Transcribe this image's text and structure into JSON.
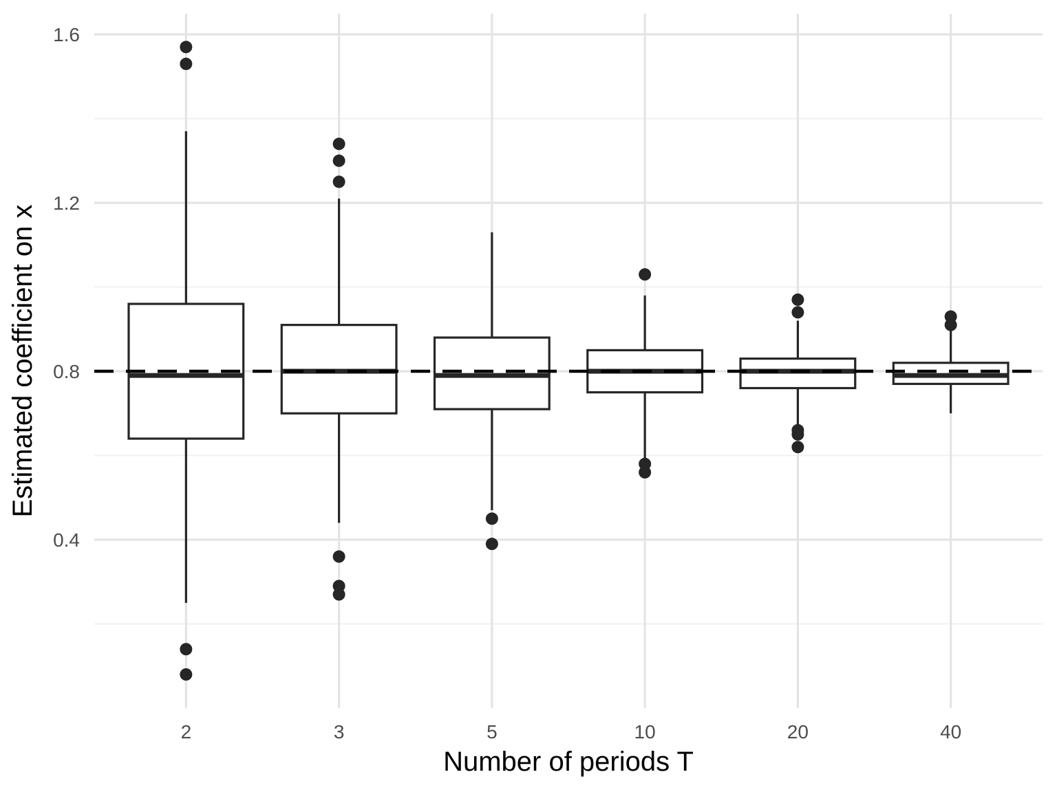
{
  "chart_data": {
    "type": "boxplot",
    "title": "",
    "xlabel": "Number of periods T",
    "ylabel": "Estimated coefficient on x",
    "categories": [
      "2",
      "3",
      "5",
      "10",
      "20",
      "40"
    ],
    "y_axis": {
      "tick_values": [
        0.4,
        0.8,
        1.2,
        1.6
      ],
      "tick_labels": [
        "0.4",
        "0.8",
        "1.2",
        "1.6"
      ],
      "minor_tick_values": [
        0.2,
        0.6,
        1.0,
        1.4
      ],
      "range": [
        0.0,
        1.649
      ]
    },
    "reference_line": {
      "y": 0.8,
      "style": "dashed",
      "color": "#000000"
    },
    "series": [
      {
        "category": "2",
        "whisker_low": 0.25,
        "q1": 0.64,
        "median": 0.79,
        "q3": 0.96,
        "whisker_high": 1.37,
        "outliers": [
          0.08,
          0.14,
          1.53,
          1.57
        ]
      },
      {
        "category": "3",
        "whisker_low": 0.44,
        "q1": 0.7,
        "median": 0.8,
        "q3": 0.91,
        "whisker_high": 1.21,
        "outliers": [
          0.27,
          0.29,
          0.36,
          1.25,
          1.3,
          1.34
        ]
      },
      {
        "category": "5",
        "whisker_low": 0.47,
        "q1": 0.71,
        "median": 0.79,
        "q3": 0.88,
        "whisker_high": 1.13,
        "outliers": [
          0.39,
          0.45
        ]
      },
      {
        "category": "10",
        "whisker_low": 0.59,
        "q1": 0.75,
        "median": 0.8,
        "q3": 0.85,
        "whisker_high": 0.98,
        "outliers": [
          0.56,
          0.58,
          1.03
        ]
      },
      {
        "category": "20",
        "whisker_low": 0.67,
        "q1": 0.76,
        "median": 0.8,
        "q3": 0.83,
        "whisker_high": 0.92,
        "outliers": [
          0.62,
          0.65,
          0.66,
          0.94,
          0.97
        ]
      },
      {
        "category": "40",
        "whisker_low": 0.7,
        "q1": 0.77,
        "median": 0.79,
        "q3": 0.82,
        "whisker_high": 0.9,
        "outliers": [
          0.91,
          0.93
        ]
      }
    ],
    "grid": true,
    "legend": false
  },
  "style": {
    "background": "#FFFFFF",
    "box_stroke": "#262626",
    "box_fill": "#FFFFFF",
    "outlier_fill": "#262626",
    "grid_major": "#E4E4E4",
    "grid_minor": "#F0F0F0",
    "tick_label_color": "#4D4D4D",
    "axis_title_color": "#000000"
  }
}
